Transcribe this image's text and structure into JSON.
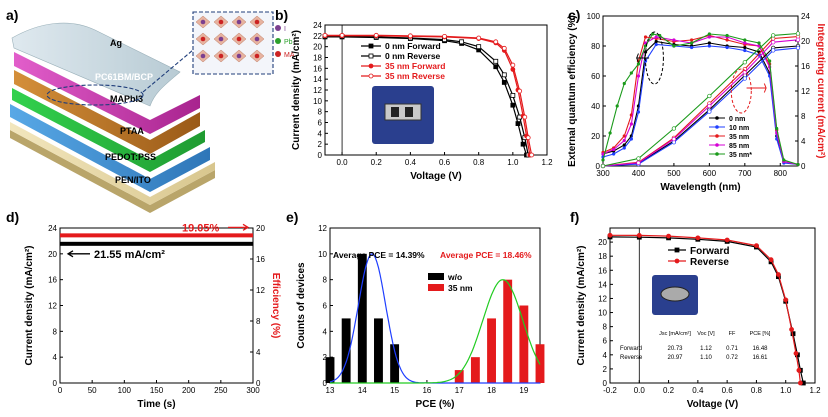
{
  "panels": {
    "a": {
      "letter": "a)",
      "layers": [
        "Ag",
        "PC61BM/BCP",
        "MAPbI3",
        "PTAA",
        "PEDOT:PSS",
        "PEN/ITO"
      ],
      "structure_legend": [
        {
          "label": "I",
          "color": "#7b3f8f"
        },
        {
          "label": "Pb",
          "color": "#2ca02c"
        },
        {
          "label": "MA",
          "color": "#cc2222"
        }
      ]
    },
    "b": {
      "letter": "b)"
    },
    "c": {
      "letter": "c)"
    },
    "d": {
      "letter": "d)"
    },
    "e": {
      "letter": "e)"
    },
    "f": {
      "letter": "f)"
    }
  },
  "colors": {
    "black": "#000000",
    "red": "#e41a1c",
    "blue": "#1f3fff",
    "magenta": "#d400d4",
    "green": "#1a9a1a",
    "gray": "#888888"
  },
  "chart_data": [
    {
      "id": "b",
      "type": "line",
      "xlabel": "Voltage (V)",
      "ylabel": "Current density (mA/cm²)",
      "xlim": [
        -0.1,
        1.2
      ],
      "ylim": [
        0,
        24
      ],
      "xticks": [
        "0.0",
        "0.2",
        "0.4",
        "0.6",
        "0.8",
        "1.0",
        "1.2"
      ],
      "yticks": [
        "0",
        "2",
        "4",
        "6",
        "8",
        "10",
        "12",
        "14",
        "16",
        "18",
        "20",
        "22",
        "24"
      ],
      "legend": [
        "0 nm  Forward",
        "0 nm  Reverse",
        "35 nm Forward",
        "35 nm Reverse"
      ],
      "series": [
        {
          "name": "0 nm  Forward",
          "color": "#000000",
          "marker": "square-filled",
          "x": [
            -0.1,
            0.0,
            0.2,
            0.4,
            0.6,
            0.7,
            0.8,
            0.9,
            0.95,
            1.0,
            1.03,
            1.06,
            1.08
          ],
          "y": [
            21.8,
            21.8,
            21.7,
            21.5,
            21.1,
            20.6,
            19.4,
            16.3,
            13.4,
            9.2,
            5.8,
            2.0,
            0
          ]
        },
        {
          "name": "0 nm  Reverse",
          "color": "#000000",
          "marker": "square-open",
          "x": [
            -0.1,
            0.0,
            0.2,
            0.4,
            0.6,
            0.7,
            0.8,
            0.9,
            0.95,
            1.0,
            1.04,
            1.07,
            1.09
          ],
          "y": [
            21.9,
            21.9,
            21.8,
            21.6,
            21.3,
            20.9,
            20.0,
            17.3,
            14.8,
            11.0,
            7.0,
            3.2,
            0
          ]
        },
        {
          "name": "35 nm Forward",
          "color": "#e41a1c",
          "marker": "circle-filled",
          "x": [
            -0.1,
            0.0,
            0.2,
            0.4,
            0.6,
            0.8,
            0.9,
            0.95,
            1.0,
            1.03,
            1.06,
            1.08,
            1.1
          ],
          "y": [
            22.0,
            22.0,
            22.0,
            21.9,
            21.8,
            21.5,
            20.7,
            19.3,
            15.8,
            12.0,
            7.2,
            3.5,
            0
          ]
        },
        {
          "name": "35 nm Reverse",
          "color": "#e41a1c",
          "marker": "circle-open",
          "x": [
            -0.1,
            0.0,
            0.2,
            0.4,
            0.6,
            0.8,
            0.9,
            0.95,
            1.0,
            1.04,
            1.07,
            1.09,
            1.11
          ],
          "y": [
            22.1,
            22.1,
            22.1,
            22.0,
            21.9,
            21.6,
            20.9,
            19.7,
            16.6,
            11.8,
            7.0,
            3.2,
            0
          ]
        }
      ]
    },
    {
      "id": "c",
      "type": "line",
      "xlabel": "Wavelength (nm)",
      "ylabel": "External quantum efficiency (%)",
      "y2label": "Integrating current (mA/cm²)",
      "xlim": [
        300,
        850
      ],
      "ylim": [
        0,
        100
      ],
      "y2lim": [
        0,
        24
      ],
      "xticks": [
        "300",
        "400",
        "500",
        "600",
        "700",
        "800"
      ],
      "yticks": [
        "0",
        "20",
        "40",
        "60",
        "80",
        "100"
      ],
      "y2ticks": [
        "0",
        "4",
        "8",
        "12",
        "16",
        "20",
        "24"
      ],
      "legend": [
        "0 nm",
        "10 nm",
        "35 nm",
        "85 nm",
        "35 nm*"
      ],
      "series": [
        {
          "name": "0 nm",
          "color": "#000000",
          "x": [
            300,
            330,
            360,
            380,
            400,
            420,
            450,
            500,
            550,
            600,
            650,
            700,
            740,
            770,
            790,
            810,
            850
          ],
          "y": [
            8,
            10,
            14,
            20,
            40,
            76,
            83,
            81,
            80,
            82,
            80,
            79,
            76,
            62,
            20,
            3,
            1
          ]
        },
        {
          "name": "10 nm",
          "color": "#1f3fff",
          "x": [
            300,
            330,
            360,
            380,
            400,
            420,
            450,
            500,
            550,
            600,
            650,
            700,
            740,
            770,
            790,
            810,
            850
          ],
          "y": [
            6,
            8,
            12,
            18,
            36,
            70,
            81,
            80,
            79,
            80,
            79,
            77,
            74,
            60,
            18,
            2,
            1
          ]
        },
        {
          "name": "35 nm",
          "color": "#e41a1c",
          "x": [
            300,
            330,
            360,
            380,
            400,
            420,
            450,
            500,
            550,
            600,
            650,
            700,
            740,
            770,
            790,
            810,
            850
          ],
          "y": [
            9,
            12,
            20,
            34,
            70,
            86,
            85,
            83,
            84,
            87,
            84,
            81,
            80,
            68,
            24,
            3,
            1
          ]
        },
        {
          "name": "85 nm",
          "color": "#d400d4",
          "x": [
            300,
            330,
            360,
            380,
            400,
            420,
            450,
            500,
            550,
            600,
            650,
            700,
            740,
            770,
            790,
            810,
            850
          ],
          "y": [
            8,
            11,
            17,
            28,
            60,
            82,
            86,
            84,
            82,
            86,
            86,
            82,
            80,
            66,
            22,
            3,
            1
          ]
        },
        {
          "name": "35 nm*",
          "color": "#1a9a1a",
          "x": [
            300,
            320,
            340,
            360,
            380,
            400,
            420,
            440,
            460,
            500,
            550,
            600,
            650,
            700,
            740,
            770,
            790,
            810,
            850
          ],
          "y": [
            4,
            22,
            40,
            55,
            62,
            68,
            80,
            88,
            87,
            80,
            82,
            88,
            87,
            84,
            82,
            70,
            25,
            4,
            1
          ]
        }
      ],
      "integrated_series": [
        {
          "name": "0 nm",
          "color": "#000000",
          "x": [
            300,
            400,
            500,
            600,
            700,
            780,
            850
          ],
          "y": [
            0,
            0.4,
            4.0,
            9.0,
            14.5,
            18.9,
            19.2
          ]
        },
        {
          "name": "10 nm",
          "color": "#1f3fff",
          "x": [
            300,
            400,
            500,
            600,
            700,
            780,
            850
          ],
          "y": [
            0,
            0.3,
            3.8,
            8.7,
            14.0,
            18.5,
            18.9
          ]
        },
        {
          "name": "35 nm",
          "color": "#e41a1c",
          "x": [
            300,
            400,
            500,
            600,
            700,
            780,
            850
          ],
          "y": [
            0,
            0.6,
            4.5,
            10.0,
            15.5,
            20.4,
            20.7
          ]
        },
        {
          "name": "85 nm",
          "color": "#d400d4",
          "x": [
            300,
            400,
            500,
            600,
            700,
            780,
            850
          ],
          "y": [
            0,
            0.5,
            4.3,
            9.6,
            15.0,
            19.8,
            20.2
          ]
        },
        {
          "name": "35 nm*",
          "color": "#1a9a1a",
          "x": [
            300,
            400,
            500,
            600,
            700,
            780,
            850
          ],
          "y": [
            0,
            1.2,
            6.0,
            11.2,
            16.6,
            20.9,
            21.2
          ]
        }
      ]
    },
    {
      "id": "d",
      "type": "line",
      "xlabel": "Time (s)",
      "ylabel": "Current density (mA/cm²)",
      "y2label": "Efficiency (%)",
      "xlim": [
        0,
        300
      ],
      "ylim": [
        0,
        24
      ],
      "y2lim": [
        0,
        20
      ],
      "xticks": [
        "0",
        "50",
        "100",
        "150",
        "200",
        "250",
        "300"
      ],
      "yticks": [
        "0",
        "4",
        "8",
        "12",
        "16",
        "20",
        "24"
      ],
      "y2ticks": [
        "0",
        "4",
        "8",
        "12",
        "16",
        "20"
      ],
      "annotations": [
        "21.55 mA/cm²",
        "19.05%"
      ],
      "series": [
        {
          "name": "Current density",
          "axis": "left",
          "color": "#000000",
          "x": [
            0,
            300
          ],
          "y": [
            21.55,
            21.55
          ]
        },
        {
          "name": "Efficiency",
          "axis": "right",
          "color": "#e41a1c",
          "x": [
            0,
            300
          ],
          "y": [
            19.05,
            19.05
          ]
        }
      ]
    },
    {
      "id": "e",
      "type": "bar",
      "xlabel": "PCE (%)",
      "ylabel": "Counts of devices",
      "xlim": [
        13,
        19.5
      ],
      "ylim": [
        0,
        12
      ],
      "xticks": [
        "13",
        "14",
        "15",
        "16",
        "17",
        "18",
        "19"
      ],
      "yticks": [
        "0",
        "2",
        "4",
        "6",
        "8",
        "10",
        "12"
      ],
      "legend": [
        "w/o",
        "35 nm"
      ],
      "annotations": [
        "Average PCE = 14.39%",
        "Average PCE = 18.46%"
      ],
      "series": [
        {
          "name": "w/o",
          "color": "#000000",
          "x": [
            13.0,
            13.5,
            14.0,
            14.5,
            15.0
          ],
          "values": [
            2,
            5,
            10,
            5,
            3
          ]
        },
        {
          "name": "35 nm",
          "color": "#e41a1c",
          "x": [
            17.0,
            17.5,
            18.0,
            18.5,
            19.0,
            19.5
          ],
          "values": [
            1,
            2,
            5,
            8,
            6,
            3
          ]
        }
      ],
      "fits": [
        {
          "color": "#1f3fff",
          "mean": 14.3,
          "sd": 0.42,
          "amp": 10
        },
        {
          "color": "#22cc22",
          "mean": 18.35,
          "sd": 0.62,
          "amp": 8
        }
      ]
    },
    {
      "id": "f",
      "type": "line",
      "xlabel": "Voltage (V)",
      "ylabel": "Current density (mA/cm²)",
      "xlim": [
        -0.2,
        1.2
      ],
      "ylim": [
        0,
        22
      ],
      "xticks": [
        "-0.2",
        "0.0",
        "0.2",
        "0.4",
        "0.6",
        "0.8",
        "1.0",
        "1.2"
      ],
      "yticks": [
        "0",
        "2",
        "4",
        "6",
        "8",
        "10",
        "12",
        "14",
        "16",
        "18",
        "20"
      ],
      "legend": [
        "Forward",
        "Reverse"
      ],
      "series": [
        {
          "name": "Forward",
          "color": "#000000",
          "marker": "square-filled",
          "x": [
            -0.2,
            0.0,
            0.2,
            0.4,
            0.6,
            0.8,
            0.9,
            0.95,
            1.0,
            1.05,
            1.08,
            1.1,
            1.12
          ],
          "y": [
            20.73,
            20.7,
            20.6,
            20.4,
            20.1,
            19.3,
            17.2,
            15.1,
            11.6,
            7.0,
            4.0,
            1.8,
            0
          ]
        },
        {
          "name": "Reverse",
          "color": "#e41a1c",
          "marker": "circle-filled",
          "x": [
            -0.2,
            0.0,
            0.2,
            0.4,
            0.6,
            0.8,
            0.9,
            0.95,
            1.0,
            1.04,
            1.07,
            1.09,
            1.1
          ],
          "y": [
            20.97,
            20.95,
            20.85,
            20.6,
            20.3,
            19.5,
            17.5,
            15.4,
            11.8,
            7.6,
            4.2,
            1.8,
            0
          ]
        }
      ],
      "table": {
        "headers": [
          "",
          "Jsc [mA/cm²]",
          "Voc [V]",
          "FF",
          "PCE [%]"
        ],
        "rows": [
          [
            "Forward",
            "20.73",
            "1.12",
            "0.71",
            "16.48"
          ],
          [
            "Reverse",
            "20.97",
            "1.10",
            "0.72",
            "16.61"
          ]
        ]
      }
    }
  ]
}
